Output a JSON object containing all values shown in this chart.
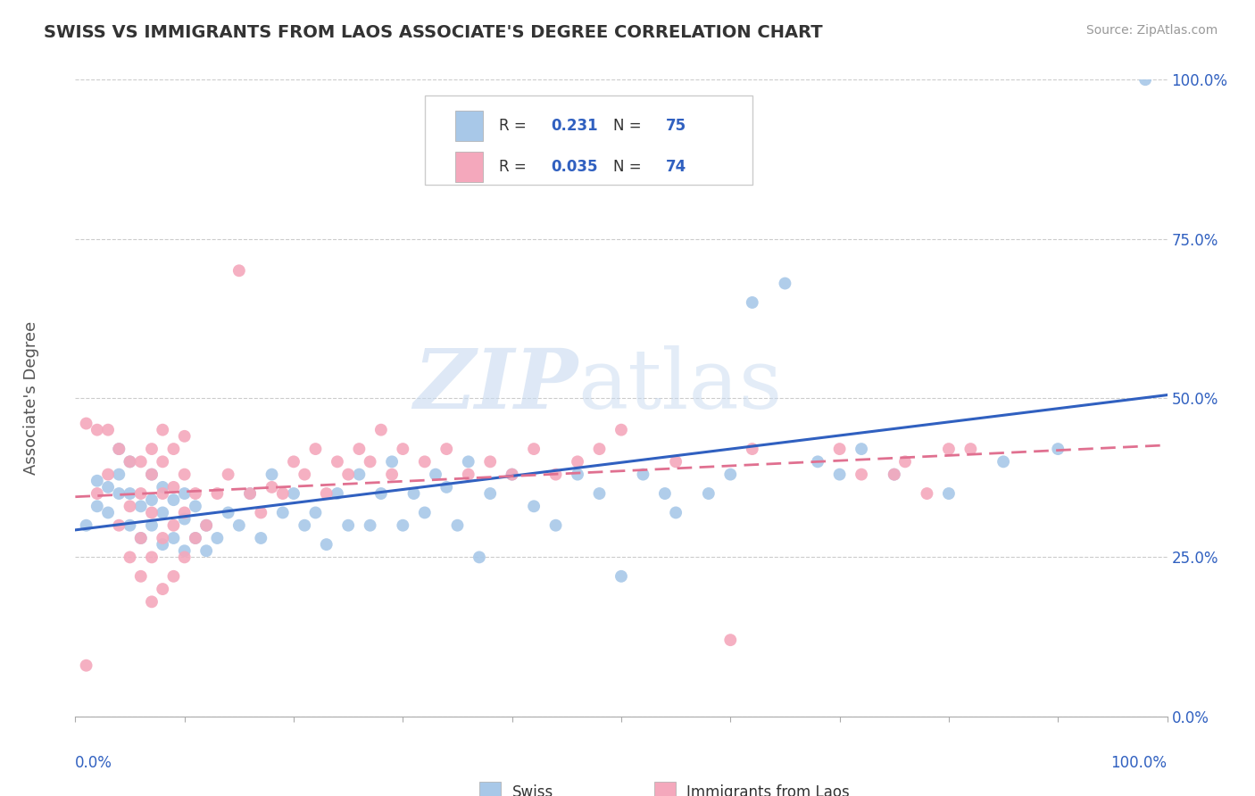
{
  "title": "SWISS VS IMMIGRANTS FROM LAOS ASSOCIATE'S DEGREE CORRELATION CHART",
  "source_text": "Source: ZipAtlas.com",
  "ylabel": "Associate's Degree",
  "swiss_R": "0.231",
  "swiss_N": "75",
  "laos_R": "0.035",
  "laos_N": "74",
  "swiss_color": "#a8c8e8",
  "laos_color": "#f4a8bc",
  "swiss_line_color": "#3060c0",
  "laos_line_color": "#e07090",
  "background_color": "#ffffff",
  "grid_color": "#cccccc",
  "xlim": [
    0.0,
    1.0
  ],
  "ylim": [
    0.0,
    1.0
  ],
  "y_tick_positions": [
    0.0,
    0.25,
    0.5,
    0.75,
    1.0
  ],
  "swiss_x": [
    0.01,
    0.02,
    0.02,
    0.03,
    0.03,
    0.04,
    0.04,
    0.04,
    0.05,
    0.05,
    0.05,
    0.06,
    0.06,
    0.07,
    0.07,
    0.07,
    0.08,
    0.08,
    0.08,
    0.09,
    0.09,
    0.1,
    0.1,
    0.1,
    0.11,
    0.11,
    0.12,
    0.12,
    0.13,
    0.14,
    0.15,
    0.16,
    0.17,
    0.18,
    0.19,
    0.2,
    0.21,
    0.22,
    0.23,
    0.24,
    0.25,
    0.26,
    0.27,
    0.28,
    0.29,
    0.3,
    0.31,
    0.32,
    0.33,
    0.34,
    0.35,
    0.36,
    0.37,
    0.38,
    0.4,
    0.42,
    0.44,
    0.46,
    0.48,
    0.5,
    0.52,
    0.54,
    0.55,
    0.58,
    0.6,
    0.62,
    0.65,
    0.68,
    0.7,
    0.72,
    0.75,
    0.8,
    0.85,
    0.9,
    0.98
  ],
  "swiss_y": [
    0.3,
    0.33,
    0.37,
    0.32,
    0.36,
    0.35,
    0.38,
    0.42,
    0.3,
    0.35,
    0.4,
    0.28,
    0.33,
    0.3,
    0.34,
    0.38,
    0.27,
    0.32,
    0.36,
    0.28,
    0.34,
    0.26,
    0.31,
    0.35,
    0.28,
    0.33,
    0.26,
    0.3,
    0.28,
    0.32,
    0.3,
    0.35,
    0.28,
    0.38,
    0.32,
    0.35,
    0.3,
    0.32,
    0.27,
    0.35,
    0.3,
    0.38,
    0.3,
    0.35,
    0.4,
    0.3,
    0.35,
    0.32,
    0.38,
    0.36,
    0.3,
    0.4,
    0.25,
    0.35,
    0.38,
    0.33,
    0.3,
    0.38,
    0.35,
    0.22,
    0.38,
    0.35,
    0.32,
    0.35,
    0.38,
    0.65,
    0.68,
    0.4,
    0.38,
    0.42,
    0.38,
    0.35,
    0.4,
    0.42,
    1.0
  ],
  "laos_x": [
    0.01,
    0.02,
    0.02,
    0.03,
    0.03,
    0.04,
    0.04,
    0.05,
    0.05,
    0.05,
    0.06,
    0.06,
    0.06,
    0.06,
    0.07,
    0.07,
    0.07,
    0.07,
    0.07,
    0.08,
    0.08,
    0.08,
    0.08,
    0.08,
    0.09,
    0.09,
    0.09,
    0.09,
    0.1,
    0.1,
    0.1,
    0.1,
    0.11,
    0.11,
    0.12,
    0.13,
    0.14,
    0.15,
    0.16,
    0.17,
    0.18,
    0.19,
    0.2,
    0.21,
    0.22,
    0.23,
    0.24,
    0.25,
    0.26,
    0.27,
    0.28,
    0.29,
    0.3,
    0.32,
    0.34,
    0.36,
    0.38,
    0.4,
    0.42,
    0.44,
    0.46,
    0.48,
    0.5,
    0.55,
    0.6,
    0.62,
    0.7,
    0.72,
    0.75,
    0.76,
    0.78,
    0.8,
    0.82,
    0.01
  ],
  "laos_y": [
    0.08,
    0.35,
    0.45,
    0.38,
    0.45,
    0.3,
    0.42,
    0.25,
    0.33,
    0.4,
    0.22,
    0.28,
    0.35,
    0.4,
    0.18,
    0.25,
    0.32,
    0.38,
    0.42,
    0.2,
    0.28,
    0.35,
    0.4,
    0.45,
    0.22,
    0.3,
    0.36,
    0.42,
    0.25,
    0.32,
    0.38,
    0.44,
    0.28,
    0.35,
    0.3,
    0.35,
    0.38,
    0.7,
    0.35,
    0.32,
    0.36,
    0.35,
    0.4,
    0.38,
    0.42,
    0.35,
    0.4,
    0.38,
    0.42,
    0.4,
    0.45,
    0.38,
    0.42,
    0.4,
    0.42,
    0.38,
    0.4,
    0.38,
    0.42,
    0.38,
    0.4,
    0.42,
    0.45,
    0.4,
    0.12,
    0.42,
    0.42,
    0.38,
    0.38,
    0.4,
    0.35,
    0.42,
    0.42,
    0.46
  ]
}
